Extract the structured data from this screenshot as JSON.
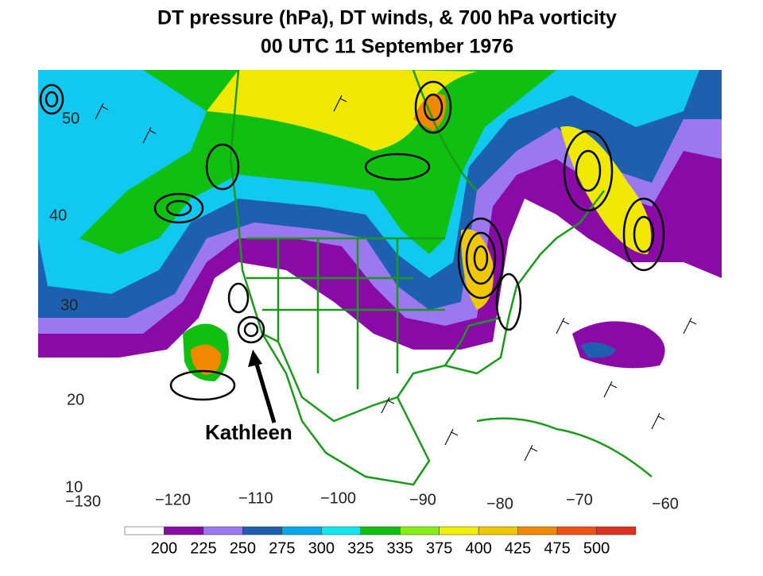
{
  "title": {
    "line1": "DT pressure (hPa), DT winds, & 700 hPa vorticity",
    "line2": "00 UTC 11 September 1976"
  },
  "map": {
    "latitude_labels": [
      "50",
      "40",
      "30",
      "20",
      "10"
    ],
    "longitude_labels": [
      "−130",
      "−120",
      "−110",
      "−100",
      "−90",
      "−80",
      "−70",
      "−60"
    ],
    "annotation": "Kathleen"
  },
  "colorbar": {
    "labels": [
      200,
      225,
      250,
      275,
      300,
      325,
      335,
      375,
      400,
      425,
      475,
      500
    ],
    "colors": [
      "#ffffff",
      "#8a0aa8",
      "#9b78f0",
      "#1e60b0",
      "#08a8ec",
      "#10e8f0",
      "#10c010",
      "#88f010",
      "#f0f000",
      "#f0c800",
      "#f08800",
      "#f05010",
      "#e03020"
    ]
  }
}
